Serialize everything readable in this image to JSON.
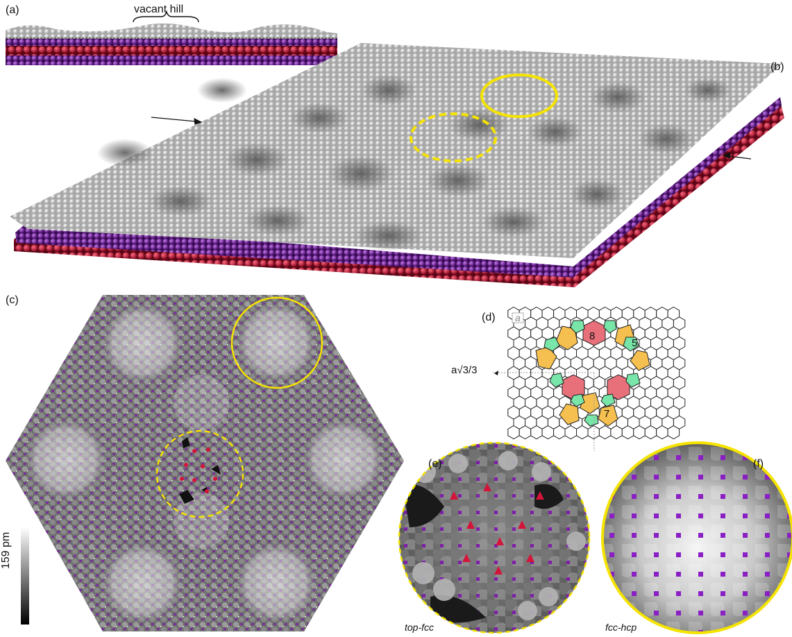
{
  "figure": {
    "panel_a": {
      "label": "(a)",
      "annotation": "vacant hill"
    },
    "panel_b": {
      "label": "(b)"
    },
    "panel_c": {
      "label": "(c)",
      "colorbar_label": "159 pm"
    },
    "panel_d": {
      "label": "(d)",
      "lattice_const": "a",
      "spacing_label": "a√3/3",
      "ring_labels": [
        "8",
        "5",
        "7"
      ]
    },
    "panel_e": {
      "label": "(e)",
      "caption": "top-fcc"
    },
    "panel_f": {
      "label": "(f)",
      "caption": "fcc-hcp"
    }
  },
  "colors": {
    "highlight": "#f5e300",
    "purple": "#7d1fa8",
    "red": "#d4143a",
    "silver": "#dcdcdc",
    "octagon": "#e8707a",
    "pentagon": "#79e6a9",
    "heptagon": "#f5c04f"
  }
}
